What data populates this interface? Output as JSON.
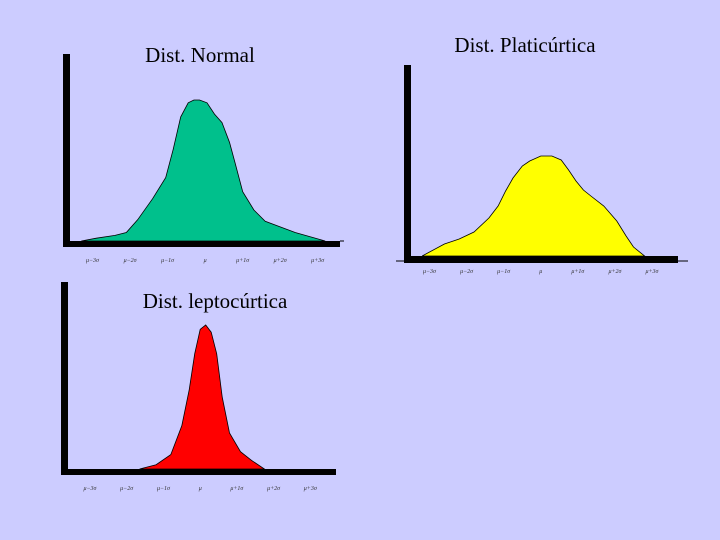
{
  "slide": {
    "background": "#ccccff"
  },
  "chart_data": [
    {
      "id": "normal",
      "type": "area",
      "title": "Dist. Normal",
      "fill": "#00c08c",
      "xlabel": "",
      "ylabel": "",
      "xlim": [
        -3.6,
        3.7
      ],
      "ylim": [
        0,
        1
      ],
      "grid": false,
      "ticks": [
        "μ−3σ",
        "μ−2σ",
        "μ−1σ",
        "μ",
        "μ+1σ",
        "μ+2σ",
        "μ+3σ"
      ],
      "tick_positions": [
        -3,
        -2,
        -1,
        0,
        1,
        2,
        3
      ],
      "x": [
        -3.3,
        -2.9,
        -2.4,
        -2.1,
        -1.8,
        -1.4,
        -1.05,
        -0.85,
        -0.65,
        -0.45,
        -0.3,
        -0.15,
        0.05,
        0.25,
        0.45,
        0.65,
        0.8,
        1.0,
        1.3,
        1.6,
        2.0,
        2.4,
        2.8,
        3.2
      ],
      "y": [
        0.0,
        0.02,
        0.04,
        0.06,
        0.15,
        0.3,
        0.45,
        0.65,
        0.88,
        0.98,
        1.0,
        1.0,
        0.98,
        0.9,
        0.84,
        0.7,
        0.55,
        0.35,
        0.22,
        0.14,
        0.1,
        0.06,
        0.03,
        0.0
      ]
    },
    {
      "id": "platicurtica",
      "type": "area",
      "title": "Dist. Platicúrtica",
      "fill": "#ffff00",
      "xlabel": "",
      "ylabel": "",
      "xlim": [
        -3.5,
        3.7
      ],
      "ylim": [
        0,
        1
      ],
      "grid": false,
      "ticks": [
        "μ−3σ",
        "μ−2σ",
        "μ−1σ",
        "μ",
        "μ+1σ",
        "μ+2σ",
        "μ+3σ"
      ],
      "tick_positions": [
        -3,
        -2,
        -1,
        0,
        1,
        2,
        3
      ],
      "x": [
        -3.2,
        -2.6,
        -2.2,
        -1.8,
        -1.4,
        -1.15,
        -0.95,
        -0.75,
        -0.5,
        -0.3,
        0.0,
        0.3,
        0.55,
        0.75,
        0.95,
        1.15,
        1.35,
        1.7,
        2.05,
        2.3,
        2.5,
        2.8
      ],
      "y": [
        0.0,
        0.12,
        0.17,
        0.24,
        0.38,
        0.5,
        0.65,
        0.78,
        0.9,
        0.95,
        1.0,
        1.0,
        0.96,
        0.86,
        0.75,
        0.66,
        0.6,
        0.5,
        0.35,
        0.2,
        0.09,
        0.0
      ]
    },
    {
      "id": "leptocurtica",
      "type": "area",
      "title": "Dist. leptocúrtica",
      "fill": "#ff0000",
      "xlabel": "",
      "ylabel": "",
      "xlim": [
        -3.6,
        3.7
      ],
      "ylim": [
        0,
        1
      ],
      "grid": false,
      "ticks": [
        "μ−3σ",
        "μ−2σ",
        "μ−1σ",
        "μ",
        "μ+1σ",
        "μ+2σ",
        "μ+3σ"
      ],
      "tick_positions": [
        -3,
        -2,
        -1,
        0,
        1,
        2,
        3
      ],
      "x": [
        -1.65,
        -1.2,
        -0.8,
        -0.5,
        -0.3,
        -0.15,
        0.0,
        0.15,
        0.3,
        0.45,
        0.6,
        0.8,
        1.1,
        1.4,
        1.75
      ],
      "y": [
        0.0,
        0.03,
        0.1,
        0.3,
        0.55,
        0.8,
        0.97,
        1.0,
        0.95,
        0.8,
        0.5,
        0.25,
        0.12,
        0.06,
        0.0
      ]
    }
  ]
}
